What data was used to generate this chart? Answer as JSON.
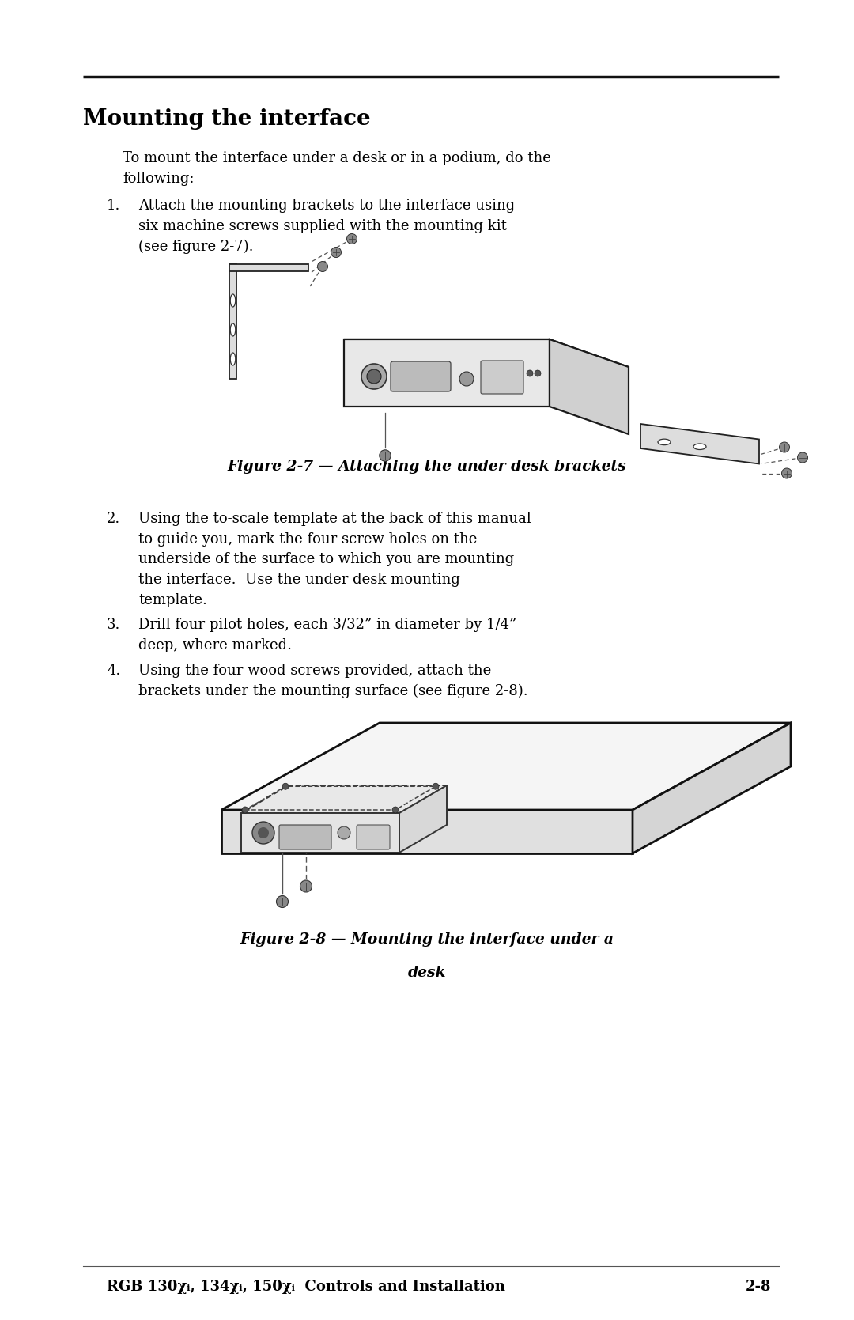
{
  "bg_color": "#ffffff",
  "page_width": 10.8,
  "page_height": 16.69,
  "dpi": 100,
  "line_color": "#000000",
  "text_color": "#000000",
  "title": "Mounting the interface",
  "intro_text": "To mount the interface under a desk or in a podium, do the\nfollowing:",
  "item1_num": "1.",
  "item1_text": "Attach the mounting brackets to the interface using\nsix machine screws supplied with the mounting kit\n(see figure 2-7).",
  "fig1_caption": "Figure 2-7 — Attaching the under desk brackets",
  "item2_num": "2.",
  "item2_text": "Using the to-scale template at the back of this manual\nto guide you, mark the four screw holes on the\nunderside of the surface to which you are mounting\nthe interface.  Use the under desk mounting\ntemplate.",
  "item3_num": "3.",
  "item3_text": "Drill four pilot holes, each 3/32” in diameter by 1/4”\ndeep, where marked.",
  "item4_num": "4.",
  "item4_text": "Using the four wood screws provided, attach the\nbrackets under the mounting surface (see figure 2-8).",
  "fig2_caption_line1": "Figure 2-8 — Mounting the interface under a",
  "fig2_caption_line2": "desk",
  "footer_text": "RGB 130χᵢ, 134χᵢ, 150χᵢ  Controls and Installation",
  "footer_page": "2-8",
  "body_fontsize": 13.0,
  "title_fontsize": 20,
  "caption_fontsize": 13.5,
  "footer_fontsize": 13.0
}
